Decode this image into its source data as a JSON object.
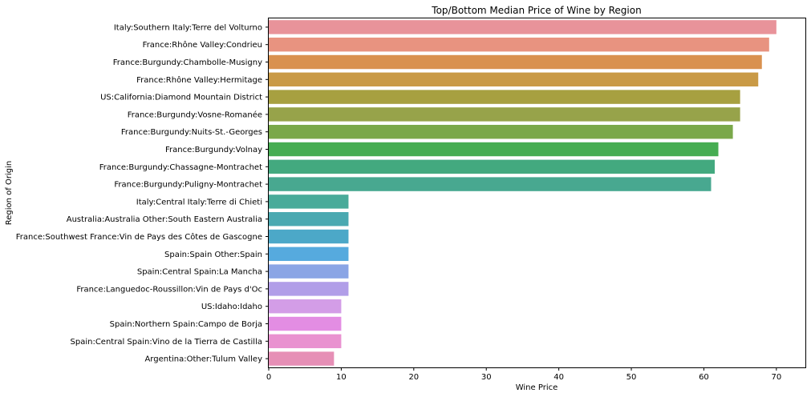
{
  "chart_data": {
    "type": "bar",
    "orientation": "horizontal",
    "title": "Top/Bottom Median Price of Wine by Region",
    "xlabel": "Wine Price",
    "ylabel": "Region of Origin",
    "xlim": [
      0,
      74
    ],
    "xticks": [
      0,
      10,
      20,
      30,
      40,
      50,
      60,
      70
    ],
    "grid": false,
    "categories": [
      "Italy:Southern Italy:Terre del Volturno",
      "France:Rhône Valley:Condrieu",
      "France:Burgundy:Chambolle-Musigny",
      "France:Rhône Valley:Hermitage",
      "US:California:Diamond Mountain District",
      "France:Burgundy:Vosne-Romanée",
      "France:Burgundy:Nuits-St.-Georges",
      "France:Burgundy:Volnay",
      "France:Burgundy:Chassagne-Montrachet",
      "France:Burgundy:Puligny-Montrachet",
      "Italy:Central Italy:Terre di Chieti",
      "Australia:Australia Other:South Eastern Australia",
      "France:Southwest France:Vin de Pays des Côtes de Gascogne",
      "Spain:Spain Other:Spain",
      "Spain:Central Spain:La Mancha",
      "France:Languedoc-Roussillon:Vin de Pays d'Oc",
      "US:Idaho:Idaho",
      "Spain:Northern Spain:Campo de Borja",
      "Spain:Central Spain:Vino de la Tierra de Castilla",
      "Argentina:Other:Tulum Valley"
    ],
    "values": [
      70,
      69,
      68,
      67.5,
      65,
      65,
      64,
      62,
      61.5,
      61,
      11,
      11,
      11,
      11,
      11,
      11,
      10,
      10,
      10,
      9
    ],
    "colors": [
      "#e8939a",
      "#e89380",
      "#d9914f",
      "#c99a46",
      "#a7a040",
      "#97a34a",
      "#7aa84a",
      "#46ad52",
      "#43a97f",
      "#48a890",
      "#49ab9a",
      "#4aa9b1",
      "#4ca8c8",
      "#56aade",
      "#8aa5e5",
      "#b19ee8",
      "#d39de7",
      "#e38de3",
      "#e992d0",
      "#e68fb6"
    ]
  }
}
